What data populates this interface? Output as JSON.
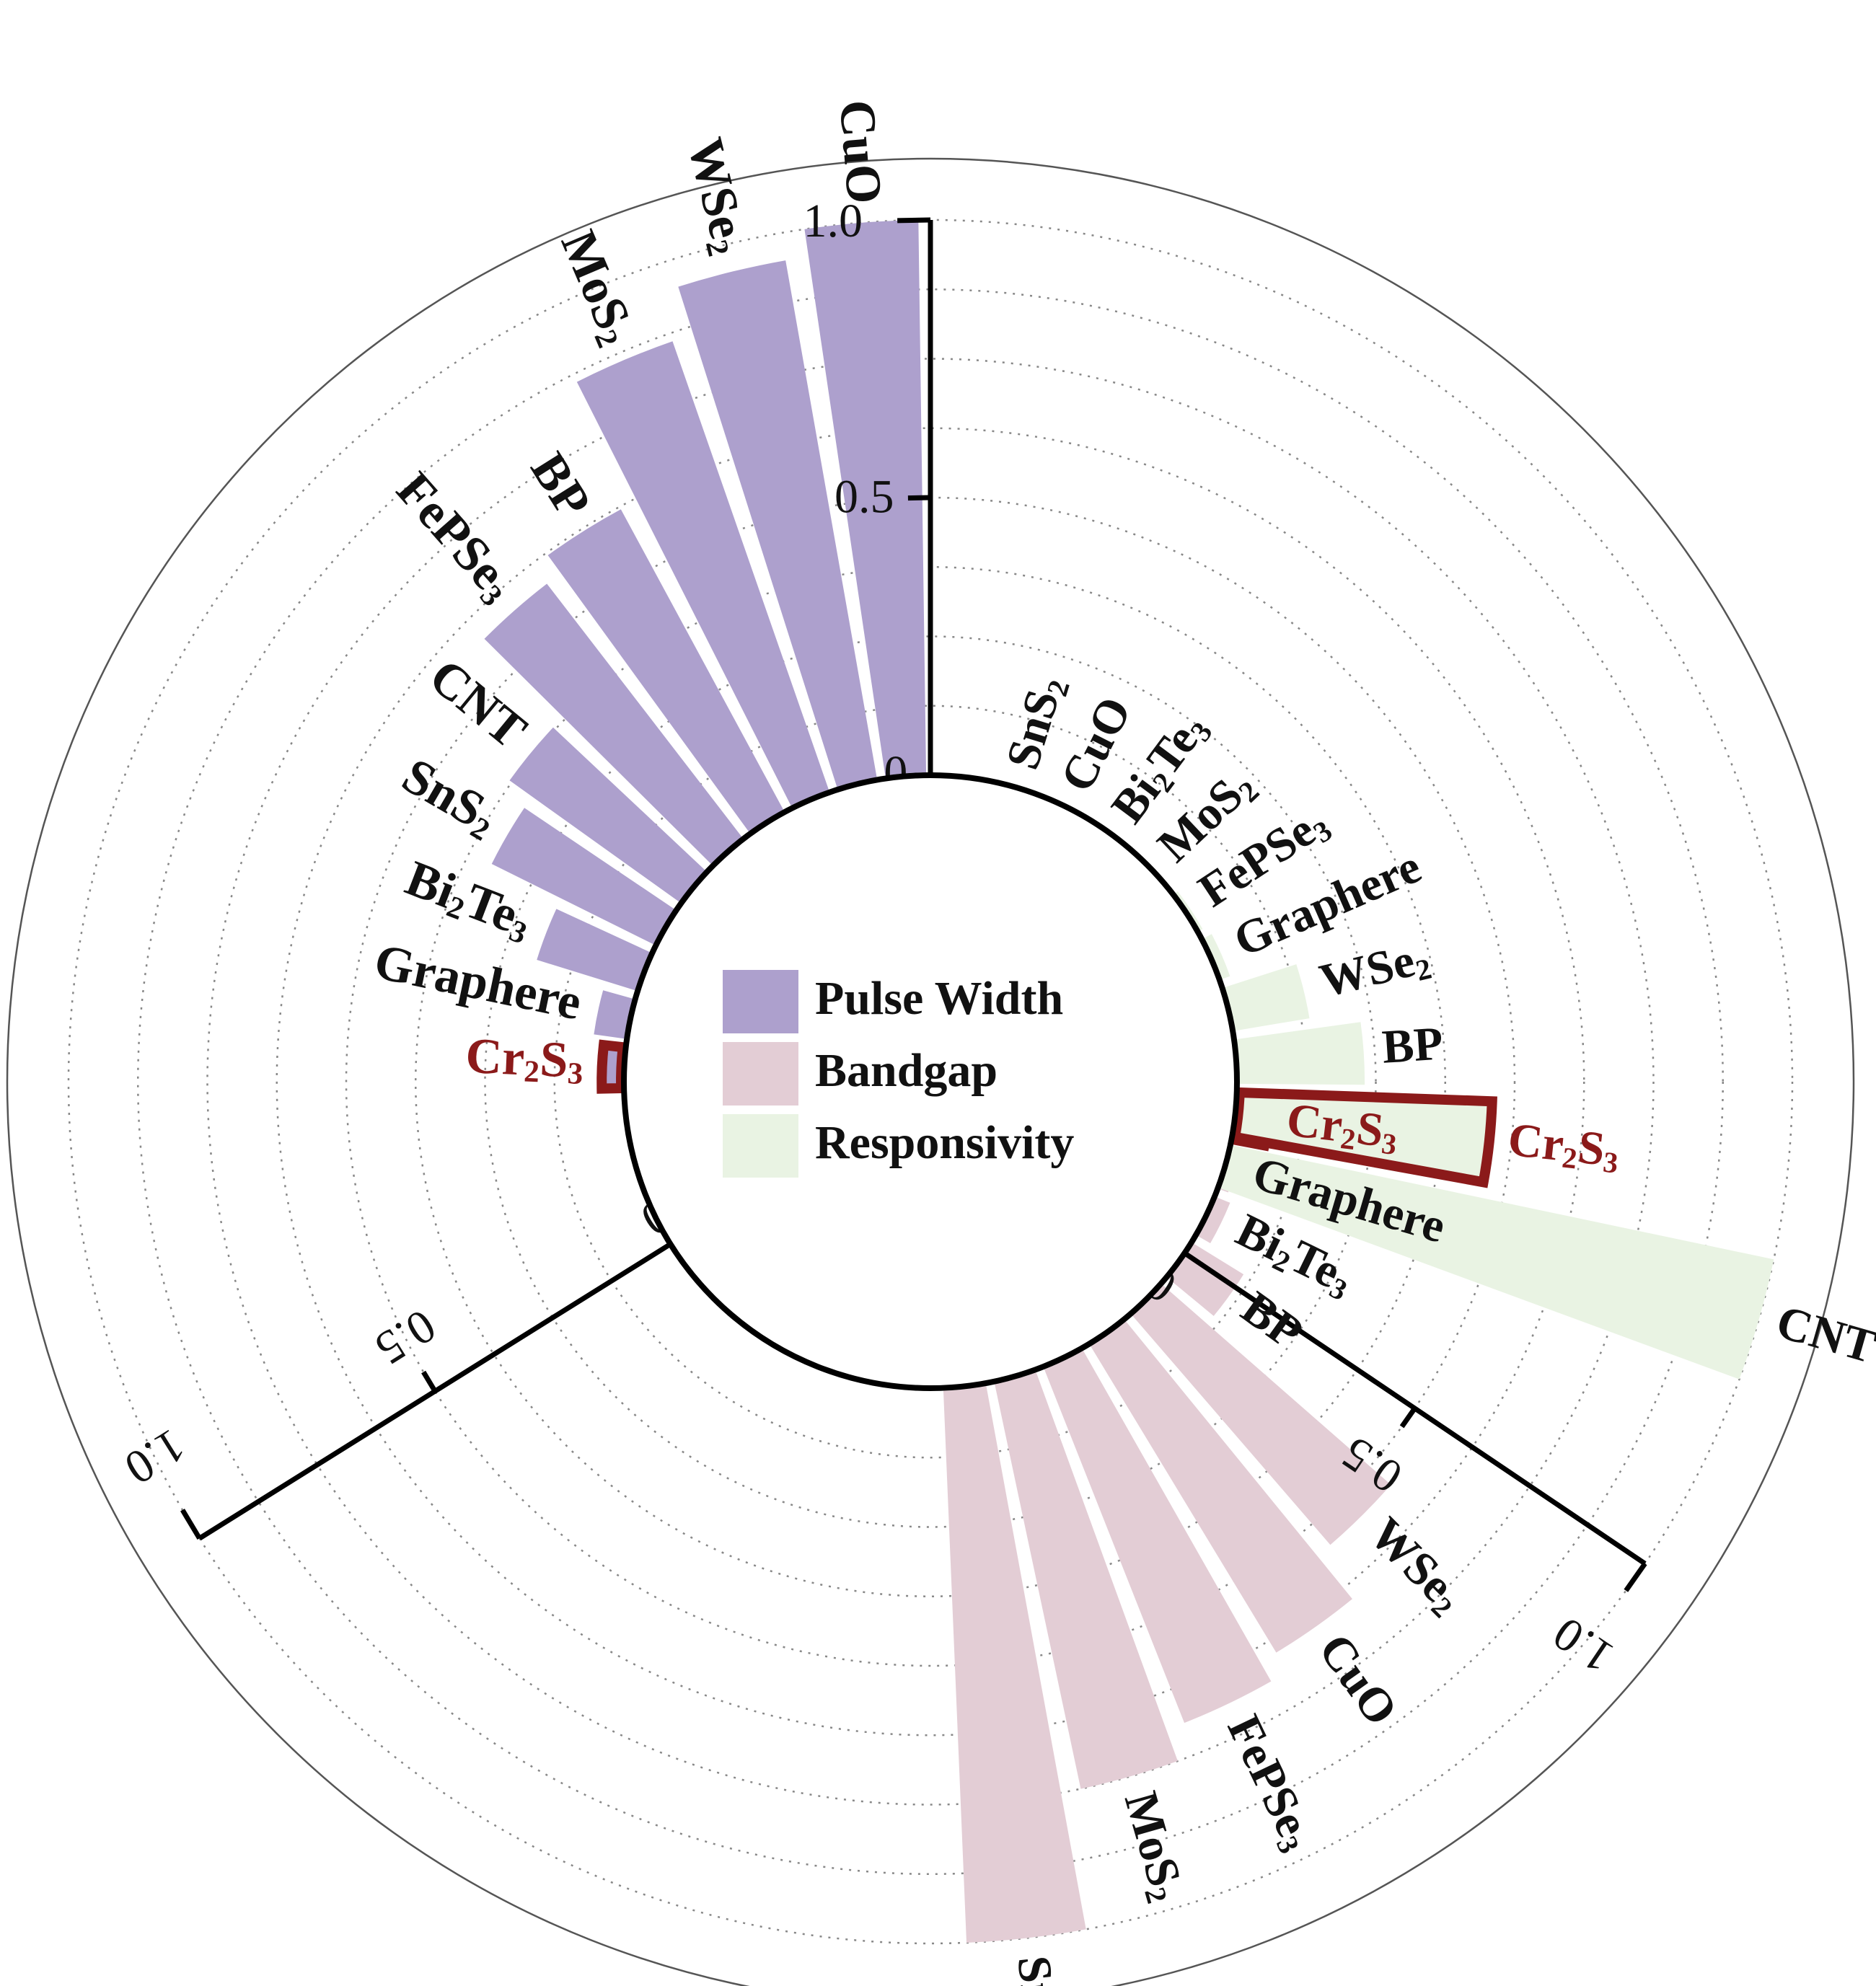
{
  "chart_data": {
    "type": "radial-bar",
    "title": "",
    "legend": {
      "placement": "center",
      "items": [
        {
          "label": "Pulse Width",
          "color": "#ada0cd"
        },
        {
          "label": "Bandgap",
          "color": "#e3cdd5"
        },
        {
          "label": "Responsivity",
          "color": "#e9f3e3"
        }
      ]
    },
    "highlight": {
      "category": "Cr2S3",
      "outline_color": "#8b1a1a"
    },
    "axis": {
      "range": [
        0,
        1
      ],
      "ticks": [
        0,
        0.5,
        1.0
      ],
      "tick_labels": [
        "0",
        "0.5",
        "1.0"
      ],
      "grid": true
    },
    "series": [
      {
        "name": "Pulse Width",
        "color": "#ada0cd",
        "categories": [
          "Cr2S3",
          "Graphere",
          "Bi2Te3",
          "SnS2",
          "CNT",
          "FePSe3",
          "BP",
          "MoS2",
          "WSe2",
          "CuO"
        ],
        "values": [
          0.04,
          0.06,
          0.19,
          0.33,
          0.38,
          0.58,
          0.62,
          0.86,
          0.95,
          1.0
        ]
      },
      {
        "name": "Bandgap",
        "color": "#e3cdd5",
        "categories": [
          "Cr2S3",
          "Graphere",
          "Bi2Te3",
          "BP",
          "WSe2",
          "CuO",
          "FePSe3",
          "MoS2",
          "SnS2"
        ],
        "values": [
          0.06,
          0.02,
          0.03,
          0.11,
          0.55,
          0.65,
          0.69,
          0.75,
          1.0
        ]
      },
      {
        "name": "Responsivity",
        "color": "#e9f3e3",
        "categories": [
          "SnS2",
          "CuO",
          "Bi2Te3",
          "MoS2",
          "FePSe3",
          "Graphere",
          "WSe2",
          "BP",
          "Cr2S3",
          "CNT"
        ],
        "values": [
          0.0,
          0.0,
          0.0,
          0.005,
          0.01,
          0.02,
          0.14,
          0.23,
          0.46,
          1.0
        ]
      }
    ]
  }
}
